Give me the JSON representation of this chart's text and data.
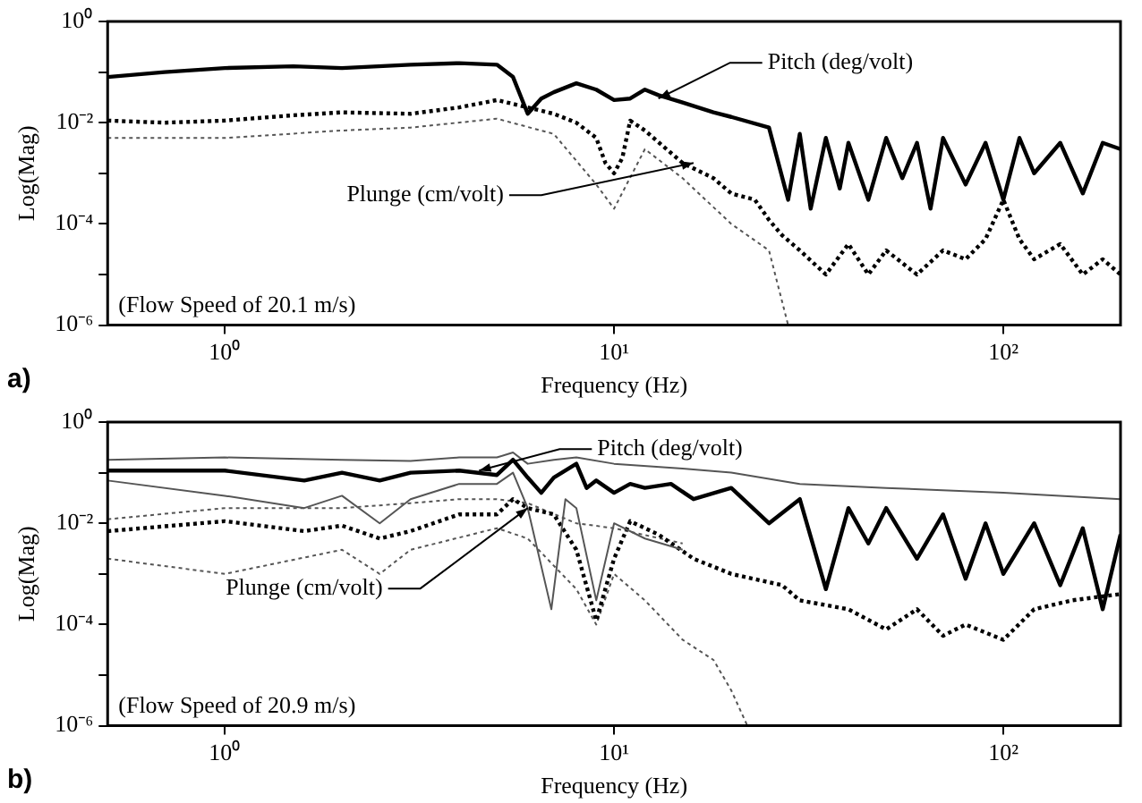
{
  "chart_data": [
    {
      "type": "line",
      "xlabel": "Frequency (Hz)",
      "ylabel": "Log(Mag)",
      "log": "xy",
      "grid": false,
      "legend": false,
      "marker": "none",
      "xlim": [
        0.5,
        200
      ],
      "ylim": [
        1e-06,
        1
      ],
      "xticks": [
        {
          "value": 1,
          "label": "10⁰"
        },
        {
          "value": 10,
          "label": "10¹"
        },
        {
          "value": 100,
          "label": "10²"
        }
      ],
      "yticks": [
        {
          "value": 1e-06,
          "label": "10⁻⁶"
        },
        {
          "value": 1e-05,
          "label": null
        },
        {
          "value": 0.0001,
          "label": "10⁻⁴"
        },
        {
          "value": 0.001,
          "label": null
        },
        {
          "value": 0.01,
          "label": "10⁻²"
        },
        {
          "value": 0.1,
          "label": null
        },
        {
          "value": 1,
          "label": "10⁰"
        }
      ],
      "annotations": [
        {
          "text": "Pitch (deg/volt)",
          "x": 13,
          "y": 0.03
        },
        {
          "text": "Plunge (cm/volt)",
          "x": 16,
          "y": 0.0016
        },
        "(Flow Speed of 20.1 m/s)",
        "a)"
      ],
      "series": [
        {
          "color": "#000000",
          "line_style": "solid",
          "x": [
            0.5,
            0.7,
            1,
            1.5,
            2,
            3,
            4,
            5,
            5.5,
            6,
            6.5,
            7,
            8,
            9,
            10,
            11,
            12,
            13,
            15,
            18,
            20,
            25,
            28,
            30,
            32,
            35,
            38,
            40,
            45,
            50,
            55,
            60,
            65,
            70,
            80,
            90,
            100,
            110,
            120,
            140,
            160,
            180,
            200
          ],
          "values": [
            0.08,
            0.1,
            0.12,
            0.13,
            0.12,
            0.14,
            0.15,
            0.14,
            0.08,
            0.015,
            0.03,
            0.04,
            0.06,
            0.045,
            0.028,
            0.03,
            0.045,
            0.035,
            0.025,
            0.016,
            0.013,
            0.008,
            0.0003,
            0.006,
            0.0002,
            0.005,
            0.0005,
            0.004,
            0.0003,
            0.005,
            0.0008,
            0.004,
            0.0002,
            0.005,
            0.0006,
            0.004,
            0.0003,
            0.005,
            0.001,
            0.004,
            0.0004,
            0.004,
            0.003
          ]
        },
        {
          "color": "#000000",
          "line_style": "dotted",
          "x": [
            0.5,
            0.7,
            1,
            1.5,
            2,
            3,
            4,
            5,
            6,
            7,
            8,
            9,
            9.5,
            10,
            10.5,
            11,
            12,
            15,
            18,
            20,
            23,
            25,
            27,
            30,
            35,
            40,
            45,
            50,
            60,
            70,
            80,
            90,
            100,
            110,
            120,
            140,
            160,
            180,
            200
          ],
          "values": [
            0.011,
            0.01,
            0.011,
            0.014,
            0.016,
            0.015,
            0.02,
            0.028,
            0.02,
            0.015,
            0.01,
            0.005,
            0.0016,
            0.001,
            0.002,
            0.011,
            0.007,
            0.0016,
            0.0008,
            0.0004,
            0.0003,
            0.00012,
            6e-05,
            3e-05,
            1e-05,
            4e-05,
            1e-05,
            3e-05,
            1e-05,
            3e-05,
            2e-05,
            5e-05,
            0.0003,
            5e-05,
            2e-05,
            4e-05,
            1e-05,
            2e-05,
            1e-05
          ]
        },
        {
          "color": "#555555",
          "line_style": "dotted",
          "x": [
            0.5,
            1,
            2,
            3,
            5,
            7,
            9,
            10,
            12,
            15,
            20,
            25,
            28
          ],
          "values": [
            0.005,
            0.005,
            0.007,
            0.008,
            0.012,
            0.006,
            0.0006,
            0.0002,
            0.003,
            0.0008,
            0.0001,
            3e-05,
            1e-06
          ]
        }
      ]
    },
    {
      "type": "line",
      "xlabel": "Frequency (Hz)",
      "ylabel": "Log(Mag)",
      "log": "xy",
      "grid": false,
      "legend": false,
      "marker": "none",
      "xlim": [
        0.5,
        200
      ],
      "ylim": [
        1e-06,
        1
      ],
      "xticks": [
        {
          "value": 1,
          "label": "10⁰"
        },
        {
          "value": 10,
          "label": "10¹"
        },
        {
          "value": 100,
          "label": "10²"
        }
      ],
      "yticks": [
        {
          "value": 1e-06,
          "label": "10⁻⁶"
        },
        {
          "value": 1e-05,
          "label": null
        },
        {
          "value": 0.0001,
          "label": "10⁻⁴"
        },
        {
          "value": 0.001,
          "label": null
        },
        {
          "value": 0.01,
          "label": "10⁻²"
        },
        {
          "value": 0.1,
          "label": null
        },
        {
          "value": 1,
          "label": "10⁰"
        }
      ],
      "annotations": [
        {
          "text": "Pitch (deg/volt)",
          "x": 4.5,
          "y": 0.11
        },
        {
          "text": "Plunge (cm/volt)",
          "x": 6,
          "y": 0.02
        },
        "(Flow Speed of 20.9 m/s)",
        "b)"
      ],
      "series": [
        {
          "color": "#000000",
          "line_style": "solid",
          "x": [
            0.5,
            1,
            1.6,
            2,
            2.5,
            3,
            4,
            5,
            5.5,
            6,
            6.5,
            7,
            8,
            8.5,
            9,
            10,
            11,
            12,
            14,
            16,
            20,
            25,
            30,
            35,
            40,
            45,
            50,
            60,
            70,
            80,
            90,
            100,
            120,
            140,
            160,
            180,
            200
          ],
          "values": [
            0.11,
            0.11,
            0.07,
            0.1,
            0.07,
            0.1,
            0.11,
            0.09,
            0.18,
            0.08,
            0.04,
            0.08,
            0.15,
            0.05,
            0.07,
            0.04,
            0.06,
            0.05,
            0.06,
            0.03,
            0.05,
            0.01,
            0.03,
            0.0005,
            0.02,
            0.004,
            0.02,
            0.002,
            0.015,
            0.0008,
            0.01,
            0.001,
            0.01,
            0.0006,
            0.008,
            0.0002,
            0.006
          ]
        },
        {
          "color": "#555555",
          "line_style": "solid",
          "x": [
            0.5,
            1,
            2,
            3,
            4,
            5,
            5.5,
            6,
            7,
            8,
            10,
            15,
            20,
            30,
            50,
            100,
            200
          ],
          "values": [
            0.18,
            0.2,
            0.18,
            0.17,
            0.2,
            0.2,
            0.25,
            0.15,
            0.18,
            0.2,
            0.15,
            0.12,
            0.1,
            0.06,
            0.05,
            0.04,
            0.03
          ]
        },
        {
          "color": "#555555",
          "line_style": "solid",
          "x": [
            0.5,
            1,
            1.6,
            2,
            2.5,
            3,
            4,
            5,
            5.5,
            6,
            6.9,
            7.5,
            8,
            9,
            10,
            12,
            15
          ],
          "values": [
            0.07,
            0.035,
            0.02,
            0.035,
            0.01,
            0.03,
            0.06,
            0.06,
            0.1,
            0.02,
            0.0002,
            0.03,
            0.02,
            0.0003,
            0.01,
            0.005,
            0.003
          ]
        },
        {
          "color": "#000000",
          "line_style": "dotted",
          "x": [
            0.5,
            1,
            1.6,
            2,
            2.5,
            3,
            4,
            5,
            5.5,
            6,
            7,
            8,
            9,
            10,
            11,
            13,
            16,
            20,
            27,
            30,
            40,
            50,
            60,
            70,
            80,
            100,
            120,
            150,
            200
          ],
          "values": [
            0.007,
            0.011,
            0.007,
            0.009,
            0.005,
            0.007,
            0.015,
            0.015,
            0.03,
            0.02,
            0.015,
            0.003,
            0.00012,
            0.002,
            0.011,
            0.006,
            0.002,
            0.001,
            0.0006,
            0.0003,
            0.0002,
            8e-05,
            0.0002,
            6e-05,
            0.0001,
            5e-05,
            0.0002,
            0.0003,
            0.0004
          ]
        },
        {
          "color": "#555555",
          "line_style": "dotted",
          "x": [
            0.5,
            1,
            2,
            3,
            4,
            5,
            6,
            8,
            10,
            15
          ],
          "values": [
            0.012,
            0.02,
            0.02,
            0.025,
            0.03,
            0.03,
            0.025,
            0.01,
            0.008,
            0.004
          ]
        },
        {
          "color": "#555555",
          "line_style": "dotted",
          "x": [
            0.5,
            1,
            2,
            2.5,
            3,
            5,
            6,
            8,
            9,
            10,
            12,
            15,
            18,
            20,
            22
          ],
          "values": [
            0.002,
            0.001,
            0.003,
            0.001,
            0.003,
            0.008,
            0.005,
            0.0005,
            0.0001,
            0.001,
            0.0003,
            5e-05,
            2e-05,
            5e-06,
            1e-06
          ]
        }
      ]
    }
  ]
}
